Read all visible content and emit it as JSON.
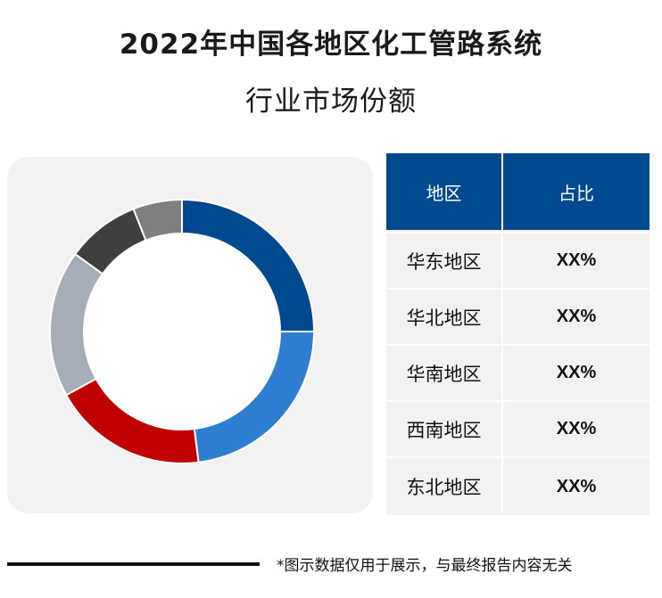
{
  "title": {
    "line1": "2022年中国各地区化工管路系统",
    "line2": "行业市场份额"
  },
  "table": {
    "headers": [
      "地区",
      "占比"
    ],
    "rows": [
      {
        "region": "华东地区",
        "share": "XX%"
      },
      {
        "region": "华北地区",
        "share": "XX%"
      },
      {
        "region": "华南地区",
        "share": "XX%"
      },
      {
        "region": "西南地区",
        "share": "XX%"
      },
      {
        "region": "东北地区",
        "share": "XX%"
      }
    ]
  },
  "footnote": "*图示数据仅用于展示，与最终报告内容无关",
  "chart_data": {
    "type": "pie",
    "donut": true,
    "categories": [
      "华东地区",
      "华北地区",
      "华南地区",
      "西南地区",
      "东北地区",
      ""
    ],
    "values": [
      25,
      23,
      19,
      18,
      9,
      6
    ],
    "colors": [
      "#00498f",
      "#2e7fd1",
      "#c00000",
      "#a5adb8",
      "#3f3f3f",
      "#7f7f7f"
    ],
    "start_angle_deg": 0,
    "direction": "clockwise"
  },
  "colors": {
    "header_bg": "#00498f",
    "panel_bg": "#f2f2f2"
  }
}
